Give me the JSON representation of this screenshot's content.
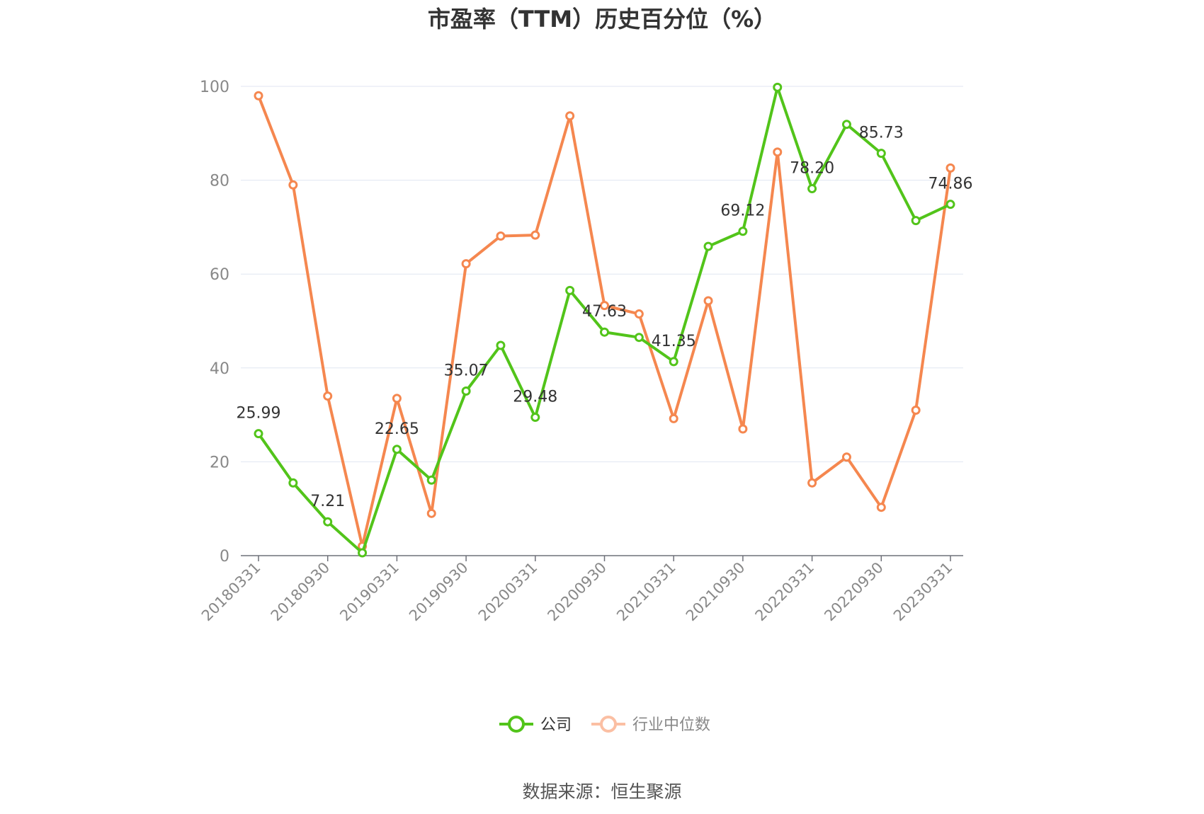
{
  "chart_data": {
    "type": "line",
    "title": "市盈率（TTM）历史百分位（%）",
    "source": "数据来源：恒生聚源",
    "ylim": [
      0,
      100
    ],
    "yticks": [
      "0",
      "20",
      "40",
      "60",
      "80",
      "100"
    ],
    "grid": true,
    "legend_position": "bottom-center",
    "x": [
      "20180331",
      "20180630",
      "20180930",
      "20181231",
      "20190331",
      "20190630",
      "20190930",
      "20191231",
      "20200331",
      "20200630",
      "20200930",
      "20201231",
      "20210331",
      "20210630",
      "20210930",
      "20211231",
      "20220331",
      "20220630",
      "20220930",
      "20221231",
      "20230331"
    ],
    "x_tick_labels": [
      "20180331",
      "20180930",
      "20190331",
      "20190930",
      "20200331",
      "20200930",
      "20210331",
      "20210930",
      "20220331",
      "20220930",
      "20230331"
    ],
    "series": [
      {
        "name": "公司",
        "color": "#52c41a",
        "values": [
          25.99,
          15.5,
          7.21,
          0.6,
          22.65,
          16.1,
          35.07,
          44.8,
          29.48,
          56.5,
          47.63,
          46.5,
          41.35,
          65.9,
          69.12,
          99.8,
          78.2,
          91.9,
          85.73,
          71.4,
          74.86
        ],
        "labels": [
          "25.99",
          "",
          "7.21",
          "",
          "22.65",
          "",
          "35.07",
          "",
          "29.48",
          "",
          "47.63",
          "",
          "41.35",
          "",
          "69.12",
          "",
          "78.20",
          "",
          "85.73",
          "",
          "74.86"
        ]
      },
      {
        "name": "行业中位数",
        "color": "#f5874f",
        "values": [
          98.0,
          79.0,
          34.0,
          2.0,
          33.5,
          9.0,
          62.2,
          68.1,
          68.3,
          93.7,
          53.3,
          51.5,
          29.2,
          54.3,
          27.0,
          86.0,
          15.5,
          21.0,
          10.3,
          31.0,
          82.6
        ]
      }
    ]
  }
}
